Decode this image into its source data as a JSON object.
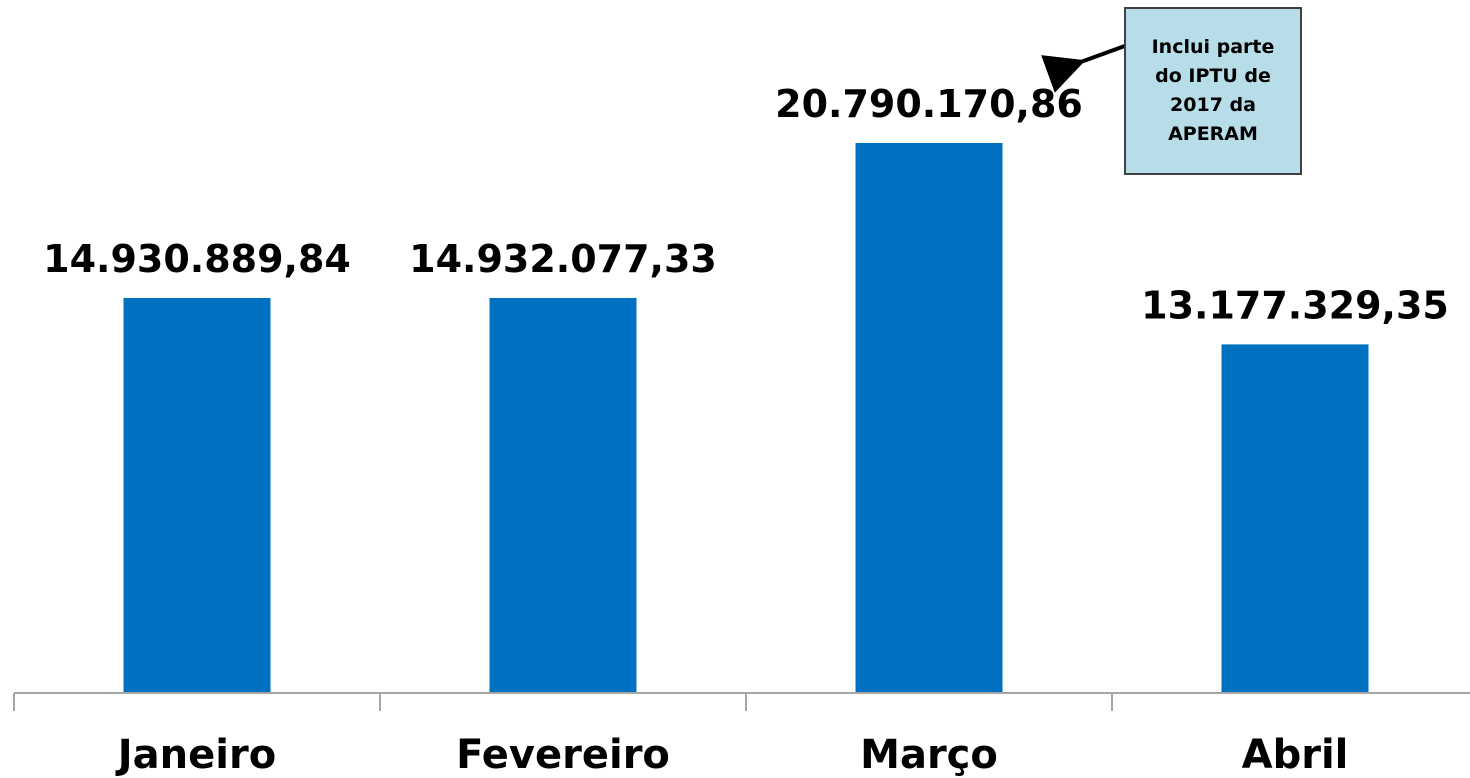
{
  "chart_data": {
    "type": "bar",
    "title": "",
    "xlabel": "",
    "ylabel": "",
    "categories": [
      "Janeiro",
      "Fevereiro",
      "Março",
      "Abril"
    ],
    "values": [
      14930889.84,
      14932077.33,
      20790170.86,
      13177329.35
    ],
    "value_labels": [
      "14.930.889,84",
      "14.932.077,33",
      "20.790.170,86",
      "13.177.329,35"
    ],
    "ylim": [
      0,
      25000000
    ],
    "grid": false,
    "legend": "none",
    "bar_color": "#0070c0",
    "annotation": {
      "text": "Inclui parte\ndo IPTU de\n2017 da\nAPERAM",
      "target_category": "Março",
      "box_color": "#b7dde8"
    }
  }
}
